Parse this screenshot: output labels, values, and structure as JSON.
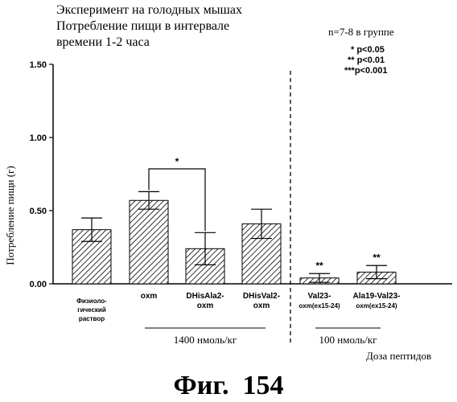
{
  "title_lines": [
    "Эксперимент на голодных мышах",
    "Потребление пищи в интервале",
    "времени 1-2 часа"
  ],
  "group_note": "n=7-8 в группе",
  "significance": [
    "* p<0.05",
    "** p<0.01",
    "***p<0.001"
  ],
  "figure_caption": "Фиг.  154",
  "xlabel": "Доза пептидов",
  "dose_groups": [
    {
      "label": "1400 нмоль/кг",
      "bars": [
        1,
        3
      ]
    },
    {
      "label": "100 нмоль/кг",
      "bars": [
        4,
        5
      ]
    }
  ],
  "comparison": {
    "from": 1,
    "to": 2,
    "mark": "*"
  },
  "chart_data": {
    "type": "bar",
    "ylabel": "Потребление пищи (г)",
    "ylim": [
      0,
      1.5
    ],
    "yticks": [
      "0.00",
      "0.50",
      "1.00",
      "1.50"
    ],
    "categories": [
      [
        "Физиоло-",
        "гический",
        "раствор"
      ],
      [
        "oxm"
      ],
      [
        "DHisAla2-",
        "oxm"
      ],
      [
        "DHisVal2-",
        "oxm"
      ],
      [
        "Val23-",
        "oxm(ex15-24)"
      ],
      [
        "Ala19-Val23-",
        "oxm(ex15-24)"
      ]
    ],
    "values": [
      0.37,
      0.57,
      0.24,
      0.41,
      0.04,
      0.08
    ],
    "errors": [
      0.08,
      0.06,
      0.11,
      0.1,
      0.03,
      0.045
    ],
    "annotations": [
      "",
      "",
      "",
      "",
      "**",
      "**"
    ],
    "separator_after": 3,
    "grid": false
  }
}
